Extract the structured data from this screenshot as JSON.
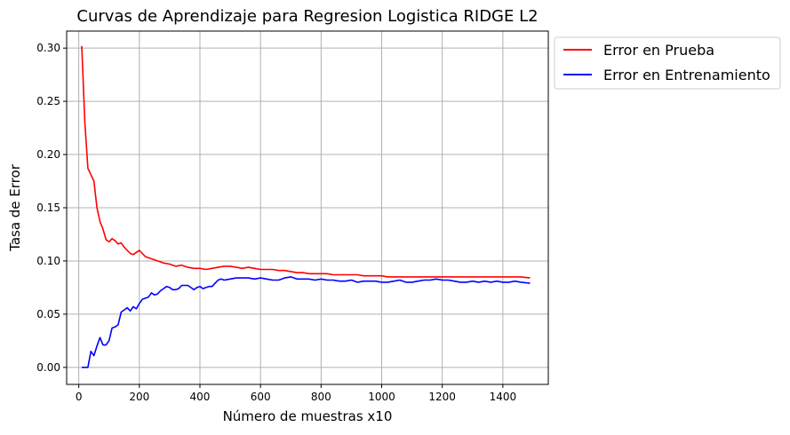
{
  "chart_data": {
    "type": "line",
    "title": "Curvas de Aprendizaje para Regresion Logistica RIDGE L2",
    "xlabel": "Número de muestras x10",
    "ylabel": "Tasa de Error",
    "xlim": [
      -40,
      1550
    ],
    "ylim": [
      -0.016,
      0.316
    ],
    "xticks": [
      0,
      200,
      400,
      600,
      800,
      1000,
      1200,
      1400
    ],
    "yticks": [
      0.0,
      0.05,
      0.1,
      0.15,
      0.2,
      0.25,
      0.3
    ],
    "xtick_labels": [
      "0",
      "200",
      "400",
      "600",
      "800",
      "1000",
      "1200",
      "1400"
    ],
    "ytick_labels": [
      "0.00",
      "0.05",
      "0.10",
      "0.15",
      "0.20",
      "0.25",
      "0.30"
    ],
    "grid": true,
    "legend_position": "outside-top-right",
    "series": [
      {
        "name": "Error en Prueba",
        "color": "#ff0000",
        "x": [
          10,
          20,
          30,
          40,
          50,
          60,
          70,
          80,
          90,
          100,
          110,
          120,
          130,
          140,
          150,
          160,
          170,
          180,
          190,
          200,
          210,
          220,
          240,
          260,
          280,
          300,
          320,
          340,
          360,
          380,
          400,
          420,
          440,
          460,
          480,
          500,
          520,
          540,
          560,
          580,
          600,
          620,
          640,
          660,
          680,
          700,
          720,
          740,
          760,
          780,
          800,
          820,
          840,
          860,
          880,
          900,
          920,
          940,
          960,
          980,
          1000,
          1020,
          1040,
          1060,
          1080,
          1100,
          1120,
          1140,
          1160,
          1180,
          1200,
          1220,
          1240,
          1260,
          1280,
          1300,
          1320,
          1340,
          1360,
          1380,
          1400,
          1420,
          1440,
          1460,
          1490
        ],
        "values": [
          0.302,
          0.23,
          0.187,
          0.181,
          0.175,
          0.15,
          0.137,
          0.13,
          0.12,
          0.118,
          0.121,
          0.119,
          0.116,
          0.117,
          0.113,
          0.11,
          0.107,
          0.106,
          0.108,
          0.11,
          0.107,
          0.104,
          0.102,
          0.1,
          0.098,
          0.097,
          0.095,
          0.096,
          0.094,
          0.093,
          0.093,
          0.092,
          0.093,
          0.094,
          0.095,
          0.095,
          0.094,
          0.093,
          0.094,
          0.093,
          0.092,
          0.092,
          0.092,
          0.091,
          0.091,
          0.09,
          0.089,
          0.089,
          0.088,
          0.088,
          0.088,
          0.088,
          0.087,
          0.087,
          0.087,
          0.087,
          0.087,
          0.086,
          0.086,
          0.086,
          0.086,
          0.085,
          0.085,
          0.085,
          0.085,
          0.085,
          0.085,
          0.085,
          0.085,
          0.085,
          0.085,
          0.085,
          0.085,
          0.085,
          0.085,
          0.085,
          0.085,
          0.085,
          0.085,
          0.085,
          0.085,
          0.085,
          0.085,
          0.085,
          0.084
        ]
      },
      {
        "name": "Error en Entrenamiento",
        "color": "#0000ff",
        "x": [
          10,
          20,
          30,
          40,
          50,
          60,
          70,
          80,
          90,
          100,
          110,
          120,
          130,
          140,
          150,
          160,
          170,
          180,
          190,
          200,
          210,
          220,
          230,
          240,
          250,
          260,
          270,
          280,
          290,
          300,
          310,
          320,
          330,
          340,
          350,
          360,
          370,
          380,
          390,
          400,
          410,
          420,
          430,
          440,
          450,
          460,
          470,
          480,
          500,
          520,
          540,
          560,
          580,
          600,
          620,
          640,
          660,
          680,
          700,
          720,
          740,
          760,
          780,
          800,
          820,
          840,
          860,
          880,
          900,
          920,
          940,
          960,
          980,
          1000,
          1020,
          1040,
          1060,
          1080,
          1100,
          1120,
          1140,
          1160,
          1180,
          1200,
          1220,
          1240,
          1260,
          1280,
          1300,
          1320,
          1340,
          1360,
          1380,
          1400,
          1420,
          1440,
          1460,
          1490
        ],
        "values": [
          0.0,
          0.0,
          0.0,
          0.015,
          0.011,
          0.02,
          0.028,
          0.021,
          0.021,
          0.025,
          0.037,
          0.038,
          0.04,
          0.052,
          0.054,
          0.056,
          0.053,
          0.057,
          0.055,
          0.06,
          0.064,
          0.065,
          0.066,
          0.07,
          0.068,
          0.069,
          0.072,
          0.074,
          0.076,
          0.075,
          0.073,
          0.073,
          0.074,
          0.077,
          0.077,
          0.077,
          0.075,
          0.073,
          0.075,
          0.076,
          0.074,
          0.075,
          0.076,
          0.076,
          0.079,
          0.082,
          0.083,
          0.082,
          0.083,
          0.084,
          0.084,
          0.084,
          0.083,
          0.084,
          0.083,
          0.082,
          0.082,
          0.084,
          0.085,
          0.083,
          0.083,
          0.083,
          0.082,
          0.083,
          0.082,
          0.082,
          0.081,
          0.081,
          0.082,
          0.08,
          0.081,
          0.081,
          0.081,
          0.08,
          0.08,
          0.081,
          0.082,
          0.08,
          0.08,
          0.081,
          0.082,
          0.082,
          0.083,
          0.082,
          0.082,
          0.081,
          0.08,
          0.08,
          0.081,
          0.08,
          0.081,
          0.08,
          0.081,
          0.08,
          0.08,
          0.081,
          0.08,
          0.079
        ]
      }
    ]
  }
}
